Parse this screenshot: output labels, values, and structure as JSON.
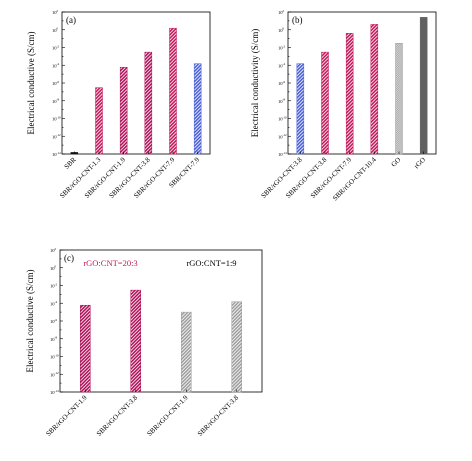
{
  "chart_data": [
    {
      "type": "bar",
      "panel_label": "(a)",
      "ylabel": "Electrical conductive (S/cm)",
      "yscale": "log",
      "ylim": [
        1e-14,
        100
      ],
      "yticks": [
        "10",
        "10",
        "10",
        "10",
        "10",
        "10",
        "10",
        "10",
        "10"
      ],
      "ytick_exps": [
        "2",
        "0",
        "-2",
        "-4",
        "-6",
        "-8",
        "-10",
        "-12",
        "-14"
      ],
      "categories": [
        "SBR",
        "SBR/rGO-CNT-1.3",
        "SBR/rGO-CNT-1.9",
        "SBR/rGO-CNT-3.8",
        "SBR/rGO-CNT-7.9",
        "SBR/CNT-7.9"
      ],
      "values": [
        1.5e-14,
        3e-07,
        6e-05,
        0.003,
        1.5,
        0.00015
      ],
      "bar_colors": [
        "#111111",
        "#c2185b",
        "#b0125a",
        "#b0125a",
        "#c2185b",
        "#4a5fd6"
      ],
      "bar_patterns": [
        "solid",
        "hatch",
        "hatch",
        "hatch",
        "hatch",
        "hatch"
      ],
      "grid": false
    },
    {
      "type": "bar",
      "panel_label": "(b)",
      "ylabel": "Electrical conductivity (S/cm)",
      "yscale": "log",
      "ylim": [
        1e-14,
        100
      ],
      "yticks": [
        "10",
        "10",
        "10",
        "10",
        "10",
        "10",
        "10",
        "10",
        "10"
      ],
      "ytick_exps": [
        "2",
        "0",
        "-2",
        "-4",
        "-6",
        "-8",
        "-10",
        "-12",
        "-14"
      ],
      "categories": [
        "SBR/rGO-CNT-3.8",
        "SBR/rGO-CNT-3.8",
        "SBR/rGO-CNT-7.9",
        "SBR/rGO-CNT-10.4",
        "GO",
        "rGO"
      ],
      "values": [
        0.00015,
        0.003,
        0.4,
        4,
        0.03,
        25
      ],
      "bar_colors": [
        "#4a5fd6",
        "#c2185b",
        "#c2185b",
        "#c2185b",
        "#9e9e9e",
        "#616161"
      ],
      "bar_patterns": [
        "hatch",
        "hatch",
        "hatch",
        "hatch",
        "check",
        "solid"
      ],
      "grid": false
    },
    {
      "type": "bar",
      "panel_label": "(c)",
      "ylabel": "Electrical conductive (S/cm)",
      "yscale": "log",
      "ylim": [
        1e-14,
        100
      ],
      "yticks": [
        "10",
        "10",
        "10",
        "10",
        "10",
        "10",
        "10",
        "10",
        "10"
      ],
      "ytick_exps": [
        "2",
        "0",
        "-2",
        "-4",
        "-6",
        "-8",
        "-10",
        "-12",
        "-14"
      ],
      "categories": [
        "SBR/rGO-CNT-1.9",
        "SBR/rGO-CNT-3.8",
        "SBR/rGO-CNT-1.9",
        "SBR/rGO-CNT-3.8"
      ],
      "values": [
        6e-05,
        0.003,
        1e-05,
        0.00015
      ],
      "bar_colors": [
        "#b0125a",
        "#b0125a",
        "#9e9e9e",
        "#9e9e9e"
      ],
      "bar_patterns": [
        "hatch",
        "hatch",
        "hatch",
        "hatch"
      ],
      "annotations": [
        {
          "text": "rGO:CNT=20:3",
          "color": "#c2185b"
        },
        {
          "text": "rGO:CNT=1:9",
          "color": "#000000"
        }
      ],
      "grid": false
    }
  ]
}
